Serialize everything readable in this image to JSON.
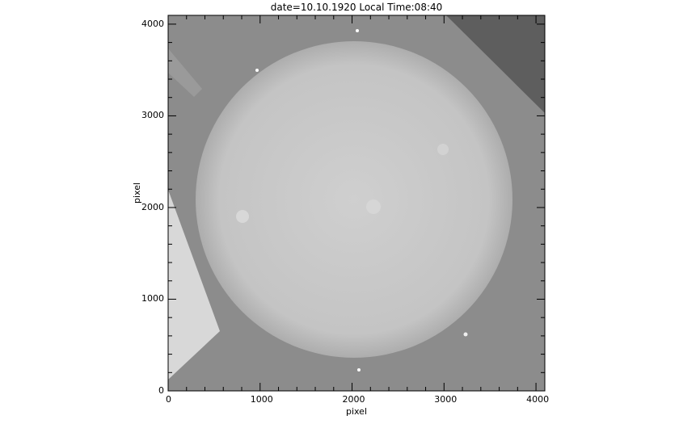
{
  "plot": {
    "title": "date=10.10.1920 Local Time:08:40",
    "xlabel": "pixel",
    "ylabel": "pixel",
    "x_range": [
      0,
      4096
    ],
    "y_range": [
      0,
      4096
    ],
    "x_ticks": [
      "0",
      "1000",
      "2000",
      "3000",
      "4000"
    ],
    "y_ticks": [
      "0",
      "1000",
      "2000",
      "3000",
      "4000"
    ],
    "colormap": "grayscale",
    "subject": "solar disk"
  }
}
